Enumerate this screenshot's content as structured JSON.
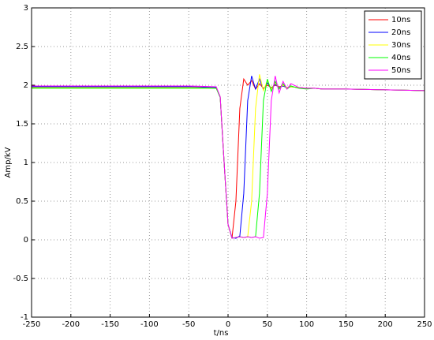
{
  "chart_data": {
    "type": "line",
    "xlabel": "t/ns",
    "ylabel": "Amp/kV",
    "x": [
      -250,
      -200,
      -150,
      -100,
      -50,
      -15,
      -10,
      -5,
      0,
      5,
      10,
      15,
      20,
      25,
      30,
      35,
      40,
      45,
      50,
      55,
      60,
      65,
      70,
      75,
      80,
      90,
      100,
      110,
      120,
      150,
      200,
      250
    ],
    "series": [
      {
        "name": "10ns",
        "color": "#ff0000",
        "values": [
          1.98,
          1.98,
          1.98,
          1.98,
          1.98,
          1.97,
          1.85,
          1.0,
          0.2,
          0.02,
          0.5,
          1.7,
          2.08,
          2.0,
          2.06,
          1.95,
          2.02,
          1.96,
          2.0,
          1.97,
          2.0,
          1.98,
          1.99,
          1.97,
          1.98,
          1.97,
          1.96,
          1.96,
          1.95,
          1.95,
          1.94,
          1.93
        ]
      },
      {
        "name": "20ns",
        "color": "#0000ff",
        "values": [
          1.98,
          1.98,
          1.98,
          1.98,
          1.98,
          1.97,
          1.85,
          1.0,
          0.2,
          0.03,
          0.02,
          0.05,
          0.6,
          1.8,
          2.12,
          1.95,
          2.08,
          1.94,
          2.03,
          1.96,
          2.01,
          1.97,
          1.99,
          1.97,
          1.98,
          1.97,
          1.96,
          1.96,
          1.95,
          1.95,
          1.94,
          1.93
        ]
      },
      {
        "name": "30ns",
        "color": "#ffff00",
        "values": [
          1.97,
          1.97,
          1.97,
          1.97,
          1.97,
          1.96,
          1.85,
          1.0,
          0.2,
          0.02,
          0.03,
          0.04,
          0.03,
          0.04,
          0.5,
          1.7,
          2.14,
          1.93,
          2.06,
          1.95,
          2.03,
          1.96,
          2.0,
          1.97,
          1.98,
          1.97,
          1.96,
          1.96,
          1.95,
          1.95,
          1.94,
          1.93
        ]
      },
      {
        "name": "40ns",
        "color": "#00ff00",
        "values": [
          1.96,
          1.96,
          1.96,
          1.96,
          1.96,
          1.96,
          1.84,
          1.0,
          0.2,
          0.02,
          0.03,
          0.04,
          0.03,
          0.04,
          0.03,
          0.04,
          0.6,
          1.8,
          2.08,
          1.92,
          2.05,
          1.95,
          2.02,
          1.95,
          1.99,
          1.96,
          1.95,
          1.96,
          1.95,
          1.95,
          1.94,
          1.93
        ]
      },
      {
        "name": "50ns",
        "color": "#ff00ff",
        "values": [
          1.99,
          1.99,
          1.99,
          1.99,
          1.99,
          1.98,
          1.85,
          1.0,
          0.2,
          0.02,
          0.03,
          0.04,
          0.03,
          0.04,
          0.03,
          0.04,
          0.02,
          0.03,
          0.6,
          1.8,
          2.12,
          1.9,
          2.05,
          1.95,
          2.02,
          1.97,
          1.96,
          1.96,
          1.95,
          1.95,
          1.94,
          1.93
        ]
      }
    ],
    "xlim": [
      -250,
      250
    ],
    "xticks": [
      -250,
      -200,
      -150,
      -100,
      -50,
      0,
      50,
      100,
      150,
      200,
      250
    ],
    "ylim": [
      -1,
      3
    ],
    "yticks": [
      -1,
      -0.5,
      0,
      0.5,
      1,
      1.5,
      2,
      2.5,
      3
    ],
    "grid": true,
    "legend": "upper right"
  }
}
